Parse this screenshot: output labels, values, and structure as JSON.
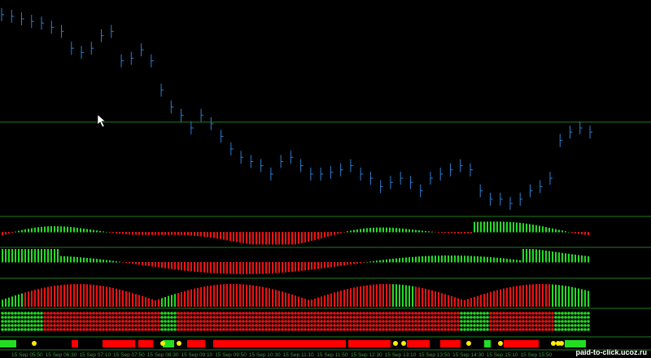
{
  "price": {
    "values": [
      245,
      243,
      240,
      237,
      235,
      230,
      225,
      205,
      200,
      205,
      220,
      225,
      190,
      193,
      203,
      190,
      155,
      135,
      125,
      110,
      125,
      115,
      100,
      85,
      75,
      70,
      65,
      55,
      70,
      75,
      65,
      55,
      55,
      57,
      60,
      65,
      55,
      50,
      40,
      45,
      50,
      45,
      35,
      50,
      55,
      60,
      65,
      60,
      35,
      25,
      25,
      20,
      25,
      35,
      40,
      50,
      95,
      105,
      110,
      105
    ]
  },
  "time_axis": {
    "labels": [
      "15 Sep 05:50",
      "15 Sep 06:30",
      "15 Sep 07:10",
      "15 Sep 07:50",
      "15 Sep 08:30",
      "15 Sep 09:10",
      "15 Sep 09:50",
      "15 Sep 10:30",
      "15 Sep 11:10",
      "15 Sep 11:50",
      "15 Sep 12:30",
      "15 Sep 13:10",
      "15 Sep 13:50",
      "15 Sep 14:30",
      "15 Sep 15:10",
      "15 Sep 15:50"
    ]
  },
  "watermark": "paid-to-click.ucoz.ru"
}
